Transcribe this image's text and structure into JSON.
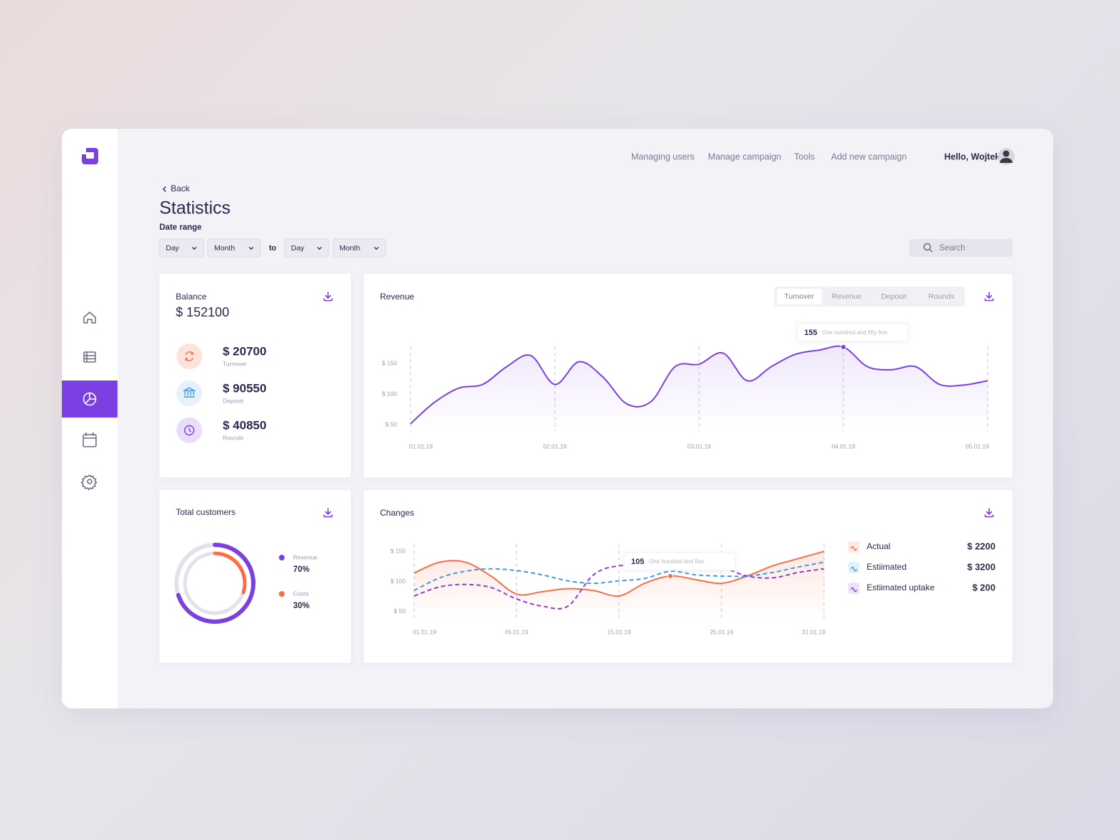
{
  "nav": {
    "links": [
      "Managing users",
      "Manage campaign",
      "Tools",
      "Add new campaign"
    ],
    "greeting": "Hello, Wojtek"
  },
  "header": {
    "back": "Back",
    "title": "Statistics",
    "date_range": "Date range",
    "from": [
      "Day",
      "Month"
    ],
    "to": "to",
    "until": [
      "Day",
      "Month"
    ],
    "search": "Search"
  },
  "balance": {
    "title": "Balance",
    "total": "$ 152100",
    "items": [
      {
        "amount": "$ 20700",
        "label": "Turnover"
      },
      {
        "amount": "$ 90550",
        "label": "Deposit"
      },
      {
        "amount": "$ 40850",
        "label": "Rounds"
      }
    ]
  },
  "revenue_tabs": [
    "Turnover",
    "Revenue",
    "Deposit",
    "Rounds"
  ],
  "chart_data": [
    {
      "type": "line",
      "title": "Revenue",
      "color": "#7b3fe4",
      "area": true,
      "categories": [
        "01.01.19",
        null,
        null,
        null,
        null,
        null,
        "02.01.19",
        null,
        null,
        null,
        null,
        null,
        "03.01.19",
        null,
        null,
        null,
        null,
        null,
        "04.01.19",
        null,
        null,
        null,
        null,
        null,
        "05.01.19"
      ],
      "values": [
        52,
        87,
        110,
        116,
        145,
        163,
        116,
        153,
        128,
        84,
        88,
        145,
        149,
        167,
        122,
        145,
        165,
        172,
        177,
        145,
        140,
        145,
        116,
        115,
        122
      ],
      "ylim": [
        40,
        185
      ],
      "yticks": [
        {
          "value": 50,
          "label": "$ 50"
        },
        {
          "value": 100,
          "label": "$ 100"
        },
        {
          "value": 150,
          "label": "$ 150"
        }
      ],
      "annotation": {
        "value": 155,
        "text": "One hundred and fifty five"
      }
    },
    {
      "type": "donut",
      "title": "Total customers",
      "categories": [
        "Revenue",
        "Costs"
      ],
      "values": [
        70,
        30
      ],
      "value_labels": [
        "70%",
        "30%"
      ],
      "colors": [
        "#7b3fe4",
        "#ff6b45"
      ]
    },
    {
      "type": "line",
      "title": "Changes",
      "legend": "right",
      "categories": [
        "01.01.19",
        null,
        null,
        null,
        "05.01.19",
        null,
        null,
        null,
        "15.01.19",
        null,
        null,
        null,
        "25.01.19",
        null,
        null,
        null,
        "31.01.19"
      ],
      "series": [
        {
          "name": "Actual",
          "total": "$ 2200",
          "color": "#ff6b45",
          "dashed": false,
          "area": true,
          "values": [
            114,
            132,
            132,
            109,
            79,
            83,
            88,
            85,
            76,
            97,
            109,
            103,
            97,
            109,
            126,
            138,
            150
          ]
        },
        {
          "name": "Estiimated",
          "total": "$ 3200",
          "color": "#3d9be9",
          "dashed": true,
          "area": false,
          "values": [
            85,
            106,
            117,
            121,
            118,
            111,
            101,
            97,
            101,
            105,
            117,
            111,
            109,
            109,
            115,
            124,
            132
          ]
        },
        {
          "name": "Estiimated uptake",
          "total": "$ 200",
          "color": "#8a3ee0",
          "dashed": true,
          "area": false,
          "values": [
            76,
            91,
            95,
            90,
            71,
            59,
            59,
            111,
            126,
            123,
            121,
            132,
            124,
            109,
            106,
            115,
            121
          ]
        }
      ],
      "ylim": [
        38,
        162
      ],
      "yticks": [
        {
          "value": 50,
          "label": "$ 50"
        },
        {
          "value": 100,
          "label": "$ 100"
        },
        {
          "value": 150,
          "label": "$ 150"
        }
      ],
      "annotation": {
        "value": 105,
        "text": "One hundred and five"
      }
    }
  ]
}
